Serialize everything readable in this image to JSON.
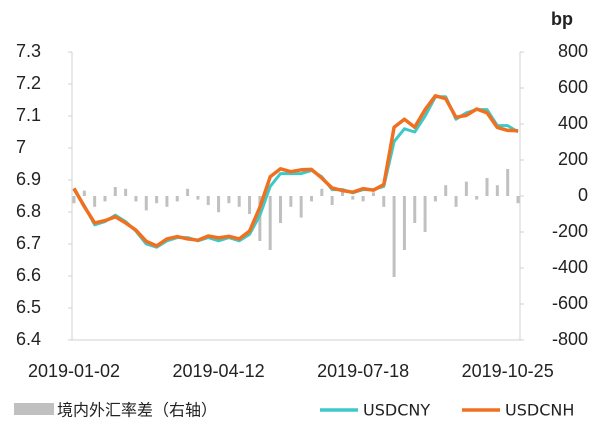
{
  "chart_data": {
    "type": "combo",
    "y2_label": "bp",
    "categories": [
      "2019-01-02",
      null,
      null,
      null,
      null,
      null,
      null,
      null,
      null,
      null,
      null,
      null,
      null,
      null,
      "2019-04-12",
      null,
      null,
      null,
      null,
      null,
      null,
      null,
      null,
      null,
      null,
      null,
      null,
      null,
      "2019-07-18",
      null,
      null,
      null,
      null,
      null,
      null,
      null,
      null,
      null,
      null,
      null,
      null,
      null,
      "2019-10-25",
      null
    ],
    "ylim": [
      6.4,
      7.3
    ],
    "yticks": [
      6.4,
      6.5,
      6.6,
      6.7,
      6.8,
      6.9,
      7,
      7.1,
      7.2,
      7.3
    ],
    "y2lim": [
      -800,
      800
    ],
    "y2ticks": [
      -800,
      -600,
      -400,
      -200,
      0,
      200,
      400,
      600,
      800
    ],
    "series": [
      {
        "name": "境内外汇率差（右轴）",
        "type": "bar",
        "axis": "y2",
        "color": "#c0c0c0",
        "values": [
          -40,
          30,
          -60,
          -30,
          50,
          40,
          -30,
          -80,
          -40,
          -60,
          -30,
          40,
          -20,
          -50,
          -90,
          -40,
          -60,
          -100,
          -250,
          -300,
          -150,
          -60,
          -120,
          -30,
          40,
          -50,
          30,
          -20,
          -30,
          20,
          -60,
          -450,
          -300,
          -150,
          -200,
          -30,
          60,
          -60,
          80,
          -20,
          100,
          60,
          150,
          -40
        ]
      },
      {
        "name": "USDCNY",
        "type": "line",
        "color": "#3ec8c8",
        "values": [
          6.87,
          6.82,
          6.76,
          6.77,
          6.79,
          6.77,
          6.74,
          6.7,
          6.69,
          6.71,
          6.72,
          6.72,
          6.71,
          6.72,
          6.71,
          6.72,
          6.71,
          6.73,
          6.79,
          6.88,
          6.92,
          6.92,
          6.92,
          6.93,
          6.91,
          6.87,
          6.87,
          6.86,
          6.87,
          6.87,
          6.88,
          7.02,
          7.06,
          7.05,
          7.1,
          7.16,
          7.16,
          7.09,
          7.11,
          7.12,
          7.12,
          7.07,
          7.07,
          7.05
        ]
      },
      {
        "name": "USDCNH",
        "type": "line",
        "color": "#f07020",
        "values": [
          6.874,
          6.817,
          6.766,
          6.773,
          6.785,
          6.766,
          6.743,
          6.708,
          6.694,
          6.716,
          6.723,
          6.716,
          6.712,
          6.725,
          6.719,
          6.724,
          6.716,
          6.74,
          6.815,
          6.91,
          6.935,
          6.926,
          6.932,
          6.933,
          6.906,
          6.875,
          6.867,
          6.862,
          6.873,
          6.868,
          6.886,
          7.065,
          7.09,
          7.065,
          7.12,
          7.163,
          7.154,
          7.096,
          7.102,
          7.122,
          7.11,
          7.064,
          7.055,
          7.054
        ]
      }
    ]
  }
}
